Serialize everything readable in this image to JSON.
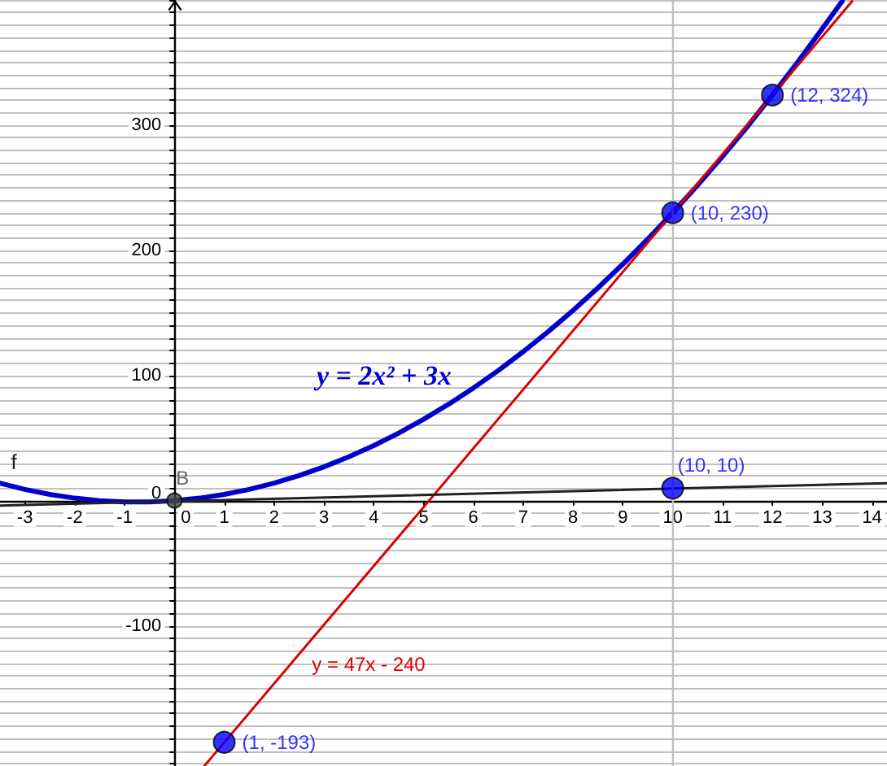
{
  "chart_data": {
    "type": "line",
    "xlim": [
      -3.5,
      14.3
    ],
    "ylim": [
      -212,
      400
    ],
    "xticks": [
      -3,
      -2,
      -1,
      0,
      1,
      2,
      3,
      4,
      5,
      6,
      7,
      8,
      9,
      10,
      11,
      12,
      13,
      14
    ],
    "yticks": [
      {
        "value": -210,
        "label": null
      },
      {
        "value": -200,
        "label": null
      },
      {
        "value": -190,
        "label": null
      },
      {
        "value": -180,
        "label": null
      },
      {
        "value": -170,
        "label": null
      },
      {
        "value": -160,
        "label": null
      },
      {
        "value": -150,
        "label": null
      },
      {
        "value": -140,
        "label": null
      },
      {
        "value": -130,
        "label": null
      },
      {
        "value": -120,
        "label": null
      },
      {
        "value": -110,
        "label": null
      },
      -100,
      {
        "value": -90,
        "label": null
      },
      {
        "value": -80,
        "label": null
      },
      {
        "value": -70,
        "label": null
      },
      {
        "value": -60,
        "label": null
      },
      {
        "value": -50,
        "label": null
      },
      {
        "value": -40,
        "label": null
      },
      {
        "value": -30,
        "label": null
      },
      {
        "value": -20,
        "label": null
      },
      {
        "value": -10,
        "label": null
      },
      0,
      {
        "value": 10,
        "label": null
      },
      {
        "value": 20,
        "label": null
      },
      {
        "value": 30,
        "label": null
      },
      {
        "value": 40,
        "label": null
      },
      {
        "value": 50,
        "label": null
      },
      {
        "value": 60,
        "label": null
      },
      {
        "value": 70,
        "label": null
      },
      {
        "value": 80,
        "label": null
      },
      {
        "value": 90,
        "label": null
      },
      100,
      {
        "value": 110,
        "label": null
      },
      {
        "value": 120,
        "label": null
      },
      {
        "value": 130,
        "label": null
      },
      {
        "value": 140,
        "label": null
      },
      {
        "value": 150,
        "label": null
      },
      {
        "value": 160,
        "label": null
      },
      {
        "value": 170,
        "label": null
      },
      {
        "value": 180,
        "label": null
      },
      {
        "value": 190,
        "label": null
      },
      200,
      {
        "value": 210,
        "label": null
      },
      {
        "value": 220,
        "label": null
      },
      {
        "value": 230,
        "label": null
      },
      {
        "value": 240,
        "label": null
      },
      {
        "value": 250,
        "label": null
      },
      {
        "value": 260,
        "label": null
      },
      {
        "value": 270,
        "label": null
      },
      {
        "value": 280,
        "label": null
      },
      {
        "value": 290,
        "label": null
      },
      300,
      {
        "value": 310,
        "label": null
      },
      {
        "value": 320,
        "label": null
      },
      {
        "value": 330,
        "label": null
      },
      {
        "value": 340,
        "label": null
      },
      {
        "value": 350,
        "label": null
      },
      {
        "value": 360,
        "label": null
      },
      {
        "value": 370,
        "label": null
      },
      {
        "value": 380,
        "label": null
      },
      {
        "value": 390,
        "label": null
      },
      {
        "value": 400,
        "label": null
      }
    ],
    "grid": "y",
    "marker": "none",
    "ref_lines": [
      {
        "axis": "x",
        "value": 10,
        "color": "#c0c0c0"
      }
    ],
    "series": [
      {
        "name": "y = 2x² + 3x",
        "color": "#0000cc",
        "x": [
          -3.5,
          -3,
          -2.5,
          -2,
          -1.5,
          -1,
          -0.5,
          0,
          0.5,
          1,
          1.5,
          2,
          2.5,
          3,
          3.5,
          4,
          4.5,
          5,
          5.5,
          6,
          6.5,
          7,
          7.5,
          8,
          8.5,
          9,
          9.5,
          10,
          10.5,
          11,
          11.5,
          12,
          12.5,
          13,
          13.4
        ],
        "values": [
          14,
          9,
          5,
          2,
          0,
          -1,
          -1,
          0,
          2,
          5,
          9,
          14,
          20,
          27,
          35,
          44,
          54,
          65,
          77,
          90,
          104,
          119,
          135,
          152,
          170,
          189,
          209,
          230,
          252,
          275,
          299,
          324,
          350,
          377,
          399
        ]
      },
      {
        "name": "y = 47x - 240",
        "color": "#dd0000",
        "x": [
          0.6,
          13.6
        ],
        "values": [
          -212,
          399
        ]
      },
      {
        "name": "f",
        "color": "#222222",
        "x": [
          -3.5,
          14.3
        ],
        "values": [
          -4,
          14
        ]
      },
      {
        "type": "scatter",
        "marker": "circle",
        "color": "#0000ff",
        "x": [
          1,
          10,
          10,
          12
        ],
        "values": [
          -193,
          10,
          230,
          324
        ],
        "value_labels": [
          "(1, -193)",
          "(10, 10)",
          "(10, 230)",
          "(12, 324)"
        ]
      },
      {
        "type": "scatter",
        "name": "B",
        "marker": "circle",
        "color": "#444444",
        "x": [
          0
        ],
        "values": [
          0
        ]
      }
    ]
  }
}
